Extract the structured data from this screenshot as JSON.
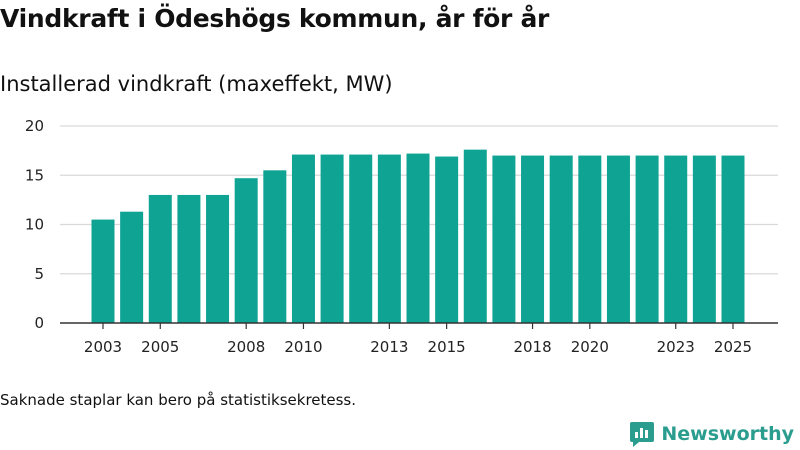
{
  "title": "Vindkraft i Ödeshögs kommun, år för år",
  "subtitle": "Installerad vindkraft (maxeffekt, MW)",
  "note": "Saknade staplar kan bero på statistiksekretess.",
  "brand": {
    "name": "Newsworthy",
    "icon": "newsworthy-logo-icon"
  },
  "colors": {
    "bar": "#0fa394",
    "grid": "#d9d9d9",
    "axis": "#333333"
  },
  "chart_data": {
    "type": "bar",
    "title": "Installerad vindkraft (maxeffekt, MW)",
    "xlabel": "",
    "ylabel": "",
    "ylim": [
      0,
      20
    ],
    "yticks": [
      0,
      5,
      10,
      15,
      20
    ],
    "xtick_labels": [
      "2003",
      "2005",
      "2008",
      "2010",
      "2013",
      "2015",
      "2018",
      "2020",
      "2023",
      "2025"
    ],
    "categories": [
      "2003",
      "2004",
      "2005",
      "2006",
      "2007",
      "2008",
      "2009",
      "2010",
      "2011",
      "2012",
      "2013",
      "2014",
      "2015",
      "2016",
      "2017",
      "2018",
      "2019",
      "2020",
      "2021",
      "2022",
      "2023",
      "2024",
      "2025"
    ],
    "values": [
      10.5,
      11.3,
      13.0,
      13.0,
      13.0,
      14.7,
      15.5,
      17.1,
      17.1,
      17.1,
      17.1,
      17.2,
      16.9,
      17.6,
      17.0,
      17.0,
      17.0,
      17.0,
      17.0,
      17.0,
      17.0,
      17.0,
      17.0
    ],
    "grid": true
  }
}
